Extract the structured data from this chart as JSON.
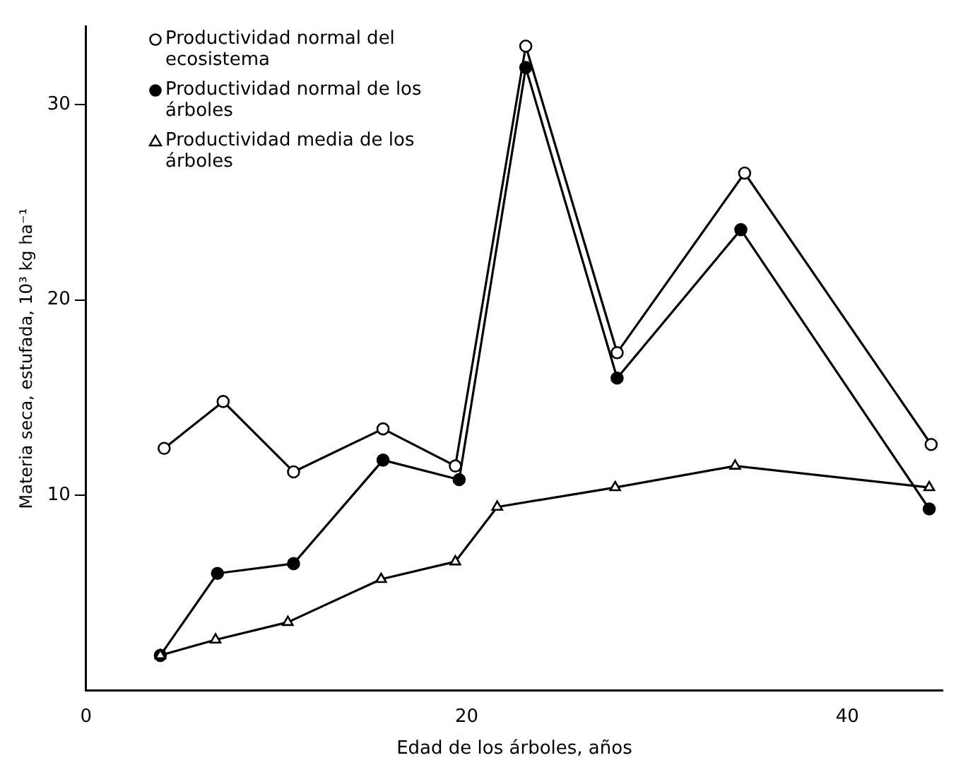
{
  "chart_data": {
    "type": "line",
    "xlabel": "Edad de los árboles, años",
    "ylabel": "Materia seca, estufada, 10³ kg ha⁻¹",
    "xlim": [
      0,
      45
    ],
    "xticks": [
      0,
      20,
      40
    ],
    "ylim": [
      0,
      34
    ],
    "yticks": [
      10,
      20,
      30
    ],
    "grid": false,
    "legend": "top left",
    "line_style": "solid",
    "series": [
      {
        "name": "Productividad normal del ecosistema",
        "color": "#000000",
        "marker": "circle",
        "x": [
          4.1,
          7.2,
          10.9,
          15.6,
          19.4,
          23.1,
          27.9,
          34.6,
          44.4
        ],
        "values": [
          12.4,
          14.8,
          11.2,
          13.4,
          11.5,
          33.0,
          17.3,
          26.5,
          12.6
        ]
      },
      {
        "name": "Productividad normal de los árboles",
        "color": "#000000",
        "marker": "circle",
        "x": [
          3.9,
          6.9,
          10.9,
          15.6,
          19.6,
          23.1,
          27.9,
          34.4,
          44.3
        ],
        "values": [
          1.8,
          6.0,
          6.5,
          11.8,
          10.8,
          31.9,
          16.0,
          23.6,
          9.3
        ]
      },
      {
        "name": "Productividad media de los árboles",
        "color": "#000000",
        "marker": "triangle",
        "x": [
          3.9,
          6.8,
          10.6,
          15.5,
          19.4,
          21.6,
          27.8,
          34.1,
          44.3
        ],
        "values": [
          1.8,
          2.6,
          3.5,
          5.7,
          6.6,
          9.4,
          10.4,
          11.5,
          10.4
        ]
      }
    ]
  }
}
